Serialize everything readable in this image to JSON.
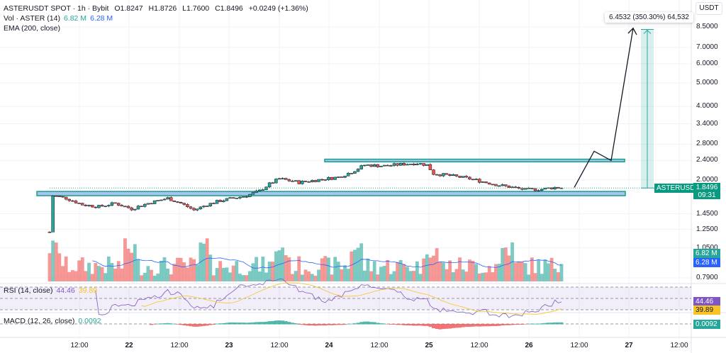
{
  "header": {
    "symbol": "ASTERUSDT SPOT · 1h · Bybit",
    "open": "O1.8247",
    "high": "H1.8726",
    "low": "L1.7600",
    "close": "C1.8496",
    "change": "+0.0249 (+1.36%)"
  },
  "volume_legend": {
    "label": "Vol · ASTER (14)",
    "vol": "6.82 M",
    "ma": "6.28 M"
  },
  "ema_legend": {
    "label": "EMA (200, close)"
  },
  "rsi_legend": {
    "label": "RSI (14, close)",
    "rsi": "44.46",
    "ma": "39.89"
  },
  "macd_legend": {
    "label": "MACD (12, 26, close)",
    "value": "0.0092"
  },
  "price_axis": {
    "currency": "USDT",
    "ticks": [
      "8.5000",
      "7.0000",
      "6.0000",
      "5.0000",
      "4.0000",
      "3.4000",
      "2.8000",
      "2.4000",
      "2.0000",
      "1.4500",
      "1.2500",
      "1.0500",
      "0.7900"
    ]
  },
  "time_axis": [
    "12:00",
    "22",
    "12:00",
    "23",
    "12:00",
    "24",
    "12:00",
    "25",
    "12:00",
    "26",
    "12:00",
    "27",
    "12:00"
  ],
  "tags": {
    "symbol": "ASTERUSDT",
    "price": "1.8496",
    "countdown": "09:31",
    "vol": "6.82 M",
    "vol_ma": "6.28 M",
    "rsi": "44.46",
    "rsi_ma": "39.89",
    "macd": "0.0092"
  },
  "position_tooltip": "6.4532 (350.30%) 64,532",
  "colors": {
    "up": "#26a69a",
    "down": "#ef5350",
    "zone": "#a7c4f2",
    "zone_border": "#16a085",
    "ema": "#2962ff",
    "rsi": "#7e57c2",
    "rsi_ma": "#f7c325"
  },
  "chart_data": {
    "type": "candlestick",
    "price_keypoints": [
      [
        0,
        1.22
      ],
      [
        1,
        1.72
      ],
      [
        5,
        1.68
      ],
      [
        10,
        1.58
      ],
      [
        15,
        1.55
      ],
      [
        20,
        1.6
      ],
      [
        25,
        1.52
      ],
      [
        30,
        1.6
      ],
      [
        36,
        1.68
      ],
      [
        40,
        1.6
      ],
      [
        44,
        1.5
      ],
      [
        48,
        1.58
      ],
      [
        52,
        1.64
      ],
      [
        56,
        1.68
      ],
      [
        60,
        1.72
      ],
      [
        64,
        1.8
      ],
      [
        67,
        1.92
      ],
      [
        70,
        2.02
      ],
      [
        76,
        1.95
      ],
      [
        82,
        2.0
      ],
      [
        88,
        2.05
      ],
      [
        92,
        2.15
      ],
      [
        96,
        2.3
      ],
      [
        102,
        2.28
      ],
      [
        108,
        2.32
      ],
      [
        112,
        2.34
      ],
      [
        115,
        2.3
      ],
      [
        117,
        2.12
      ],
      [
        122,
        2.08
      ],
      [
        128,
        2.02
      ],
      [
        133,
        1.95
      ],
      [
        137,
        1.9
      ],
      [
        141,
        1.86
      ],
      [
        145,
        1.82
      ],
      [
        150,
        1.83
      ],
      [
        154,
        1.86
      ],
      [
        156,
        1.85
      ]
    ],
    "last_price": 1.8496,
    "zones": [
      {
        "low": 1.72,
        "high": 1.79
      },
      {
        "low": 2.37,
        "high": 2.43
      }
    ],
    "projection_path": [
      1.86,
      2.62,
      2.4,
      8.4
    ],
    "long_position": {
      "entry": 1.8496,
      "target": 8.3,
      "profit_pct": 350.3
    }
  }
}
